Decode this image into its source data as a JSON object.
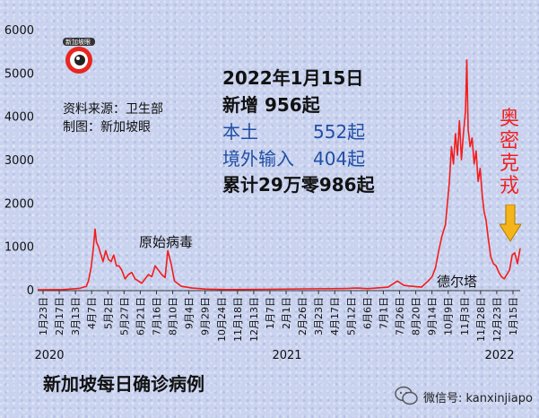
{
  "source": {
    "line1": "资料来源：卫生部",
    "line2": "制图：新加坡眼"
  },
  "logo_text": "新加坡眼",
  "stats": {
    "date": "2022年1月15日",
    "new_cases": "新增 956起",
    "local_label": "本土",
    "local_value": "552起",
    "imported_label": "境外输入",
    "imported_value": "404起",
    "cumulative": "累计29万零986起"
  },
  "annotations": {
    "original": "原始病毒",
    "delta": "德尔塔",
    "omicron": "奥密克戎"
  },
  "footer": {
    "title": "新加坡每日确诊病例",
    "wechat": "微信号: kanxinjiapo"
  },
  "chart_data": {
    "type": "line",
    "title": "新加坡每日确诊病例",
    "xlabel": "",
    "ylabel": "",
    "ylim": [
      0,
      6000
    ],
    "yticks": [
      "0",
      "1000",
      "2000",
      "3000",
      "4000",
      "5000",
      "6000"
    ],
    "xticks": [
      "1月23日",
      "2月17日",
      "3月13日",
      "4月7日",
      "5月2日",
      "5月27日",
      "6月21日",
      "7月16日",
      "8月10日",
      "9月4日",
      "9月29日",
      "10月24日",
      "11月18日",
      "12月13日",
      "1月7日",
      "2月1日",
      "2月26日",
      "3月23日",
      "4月17日",
      "5月12日",
      "6月6日",
      "7月1日",
      "7月26日",
      "8月20日",
      "9月14日",
      "10月9日",
      "11月3日",
      "11月28日",
      "12月23日",
      "1月15日"
    ],
    "year_labels": [
      "2020",
      "2021",
      "2022"
    ],
    "grid": false,
    "legend": "none",
    "color": "#f41c1c",
    "series": [
      {
        "x": [
          "2020-01-23",
          "2020-03-01",
          "2020-03-25",
          "2020-04-05",
          "2020-04-08",
          "2020-04-12",
          "2020-04-15",
          "2020-04-18",
          "2020-04-20",
          "2020-04-23",
          "2020-04-26",
          "2020-04-30",
          "2020-05-04",
          "2020-05-08",
          "2020-05-12",
          "2020-05-16",
          "2020-05-20",
          "2020-05-24",
          "2020-05-28",
          "2020-06-02",
          "2020-06-07",
          "2020-06-12",
          "2020-06-17",
          "2020-06-22",
          "2020-06-27",
          "2020-07-02",
          "2020-07-07",
          "2020-07-12",
          "2020-07-17",
          "2020-07-22",
          "2020-07-27",
          "2020-08-01",
          "2020-08-05",
          "2020-08-10",
          "2020-08-15",
          "2020-08-25",
          "2020-09-10",
          "2020-10-01",
          "2020-11-01",
          "2021-01-01",
          "2021-03-01",
          "2021-05-01",
          "2021-05-15",
          "2021-06-01",
          "2021-07-01",
          "2021-07-15",
          "2021-07-25",
          "2021-08-05",
          "2021-08-20",
          "2021-08-30",
          "2021-09-05",
          "2021-09-10",
          "2021-09-15",
          "2021-09-20",
          "2021-09-25",
          "2021-09-28",
          "2021-10-01",
          "2021-10-04",
          "2021-10-07",
          "2021-10-10",
          "2021-10-13",
          "2021-10-16",
          "2021-10-19",
          "2021-10-22",
          "2021-10-25",
          "2021-10-27",
          "2021-10-29",
          "2021-11-01",
          "2021-11-04",
          "2021-11-07",
          "2021-11-10",
          "2021-11-13",
          "2021-11-16",
          "2021-11-19",
          "2021-11-22",
          "2021-11-25",
          "2021-11-28",
          "2021-12-02",
          "2021-12-06",
          "2021-12-10",
          "2021-12-14",
          "2021-12-18",
          "2021-12-22",
          "2021-12-26",
          "2021-12-30",
          "2022-01-03",
          "2022-01-07",
          "2022-01-11",
          "2022-01-15"
        ],
        "y": [
          0,
          5,
          30,
          80,
          200,
          500,
          900,
          1400,
          1100,
          1000,
          850,
          650,
          900,
          700,
          650,
          800,
          550,
          550,
          450,
          250,
          350,
          400,
          250,
          200,
          150,
          250,
          350,
          300,
          550,
          450,
          350,
          280,
          900,
          600,
          200,
          80,
          40,
          15,
          5,
          10,
          20,
          30,
          40,
          25,
          60,
          200,
          100,
          80,
          60,
          200,
          300,
          500,
          900,
          1250,
          1500,
          2000,
          2500,
          3300,
          2900,
          3600,
          3100,
          3900,
          3000,
          3600,
          4100,
          5300,
          3700,
          3300,
          3500,
          2900,
          3200,
          2500,
          2800,
          2200,
          1800,
          1600,
          1200,
          750,
          600,
          550,
          400,
          300,
          250,
          350,
          450,
          800,
          850,
          600,
          956
        ]
      }
    ]
  }
}
